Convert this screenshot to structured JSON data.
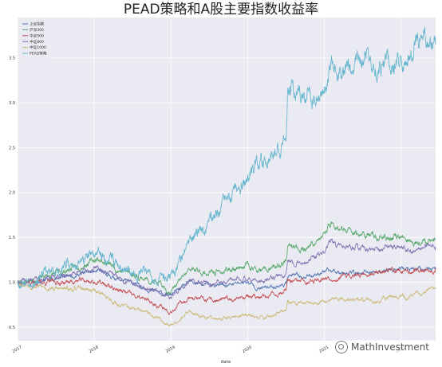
{
  "chart_data": {
    "type": "line",
    "title": "PEAD策略和A股主要指数收益率",
    "xlabel": "date",
    "ylabel": "",
    "xlim": [
      2017.0,
      2022.45
    ],
    "ylim": [
      0.35,
      3.95
    ],
    "xticks": [
      2017,
      2018,
      2019,
      2020,
      2021,
      2022
    ],
    "xtick_labels": [
      "2017",
      "2018",
      "2019",
      "2020",
      "2021",
      "2022"
    ],
    "yticks": [
      0.5,
      1.0,
      1.5,
      2.0,
      2.5,
      3.0,
      3.5
    ],
    "ytick_labels": [
      "0.5",
      "1.0",
      "1.5",
      "2.0",
      "2.5",
      "3.0",
      "3.5"
    ],
    "grid": true,
    "legend_position": "top-left",
    "series": [
      {
        "name": "上证指数",
        "color": "#4c72b0",
        "noise": 0.012,
        "seed": 11,
        "points": [
          [
            2017.0,
            1.0
          ],
          [
            2017.3,
            1.02
          ],
          [
            2017.6,
            1.06
          ],
          [
            2017.85,
            1.1
          ],
          [
            2018.05,
            1.12
          ],
          [
            2018.3,
            1.04
          ],
          [
            2018.6,
            0.96
          ],
          [
            2018.8,
            0.9
          ],
          [
            2018.98,
            0.85
          ],
          [
            2019.25,
            1.0
          ],
          [
            2019.45,
            0.97
          ],
          [
            2019.7,
            0.96
          ],
          [
            2019.98,
            1.01
          ],
          [
            2020.15,
            0.93
          ],
          [
            2020.3,
            0.95
          ],
          [
            2020.5,
            0.98
          ],
          [
            2020.52,
            1.08
          ],
          [
            2020.75,
            1.06
          ],
          [
            2020.98,
            1.12
          ],
          [
            2021.15,
            1.13
          ],
          [
            2021.45,
            1.1
          ],
          [
            2021.7,
            1.12
          ],
          [
            2021.98,
            1.16
          ],
          [
            2022.1,
            1.14
          ],
          [
            2022.3,
            1.15
          ],
          [
            2022.45,
            1.17
          ]
        ]
      },
      {
        "name": "沪深300",
        "color": "#55a868",
        "noise": 0.016,
        "seed": 23,
        "points": [
          [
            2017.0,
            1.0
          ],
          [
            2017.3,
            1.05
          ],
          [
            2017.6,
            1.12
          ],
          [
            2017.85,
            1.2
          ],
          [
            2018.05,
            1.26
          ],
          [
            2018.3,
            1.15
          ],
          [
            2018.6,
            1.06
          ],
          [
            2018.8,
            1.0
          ],
          [
            2018.98,
            0.9
          ],
          [
            2019.25,
            1.14
          ],
          [
            2019.45,
            1.1
          ],
          [
            2019.7,
            1.12
          ],
          [
            2019.98,
            1.2
          ],
          [
            2020.15,
            1.12
          ],
          [
            2020.3,
            1.14
          ],
          [
            2020.5,
            1.22
          ],
          [
            2020.52,
            1.38
          ],
          [
            2020.75,
            1.38
          ],
          [
            2020.98,
            1.5
          ],
          [
            2021.1,
            1.68
          ],
          [
            2021.2,
            1.58
          ],
          [
            2021.45,
            1.55
          ],
          [
            2021.7,
            1.5
          ],
          [
            2021.98,
            1.5
          ],
          [
            2022.1,
            1.45
          ],
          [
            2022.3,
            1.47
          ],
          [
            2022.45,
            1.48
          ]
        ]
      },
      {
        "name": "中证500",
        "color": "#c44e52",
        "noise": 0.015,
        "seed": 37,
        "points": [
          [
            2017.0,
            1.0
          ],
          [
            2017.3,
            1.0
          ],
          [
            2017.6,
            1.0
          ],
          [
            2017.85,
            1.02
          ],
          [
            2018.05,
            1.0
          ],
          [
            2018.3,
            0.92
          ],
          [
            2018.6,
            0.82
          ],
          [
            2018.8,
            0.76
          ],
          [
            2018.98,
            0.68
          ],
          [
            2019.25,
            0.84
          ],
          [
            2019.45,
            0.79
          ],
          [
            2019.7,
            0.8
          ],
          [
            2019.98,
            0.85
          ],
          [
            2020.15,
            0.82
          ],
          [
            2020.3,
            0.86
          ],
          [
            2020.5,
            0.9
          ],
          [
            2020.52,
            1.0
          ],
          [
            2020.75,
            1.0
          ],
          [
            2020.98,
            1.05
          ],
          [
            2021.15,
            1.05
          ],
          [
            2021.45,
            1.08
          ],
          [
            2021.7,
            1.12
          ],
          [
            2021.98,
            1.14
          ],
          [
            2022.1,
            1.12
          ],
          [
            2022.3,
            1.14
          ],
          [
            2022.45,
            1.16
          ]
        ]
      },
      {
        "name": "中证800",
        "color": "#8172b2",
        "noise": 0.014,
        "seed": 41,
        "points": [
          [
            2017.0,
            1.0
          ],
          [
            2017.3,
            1.04
          ],
          [
            2017.6,
            1.08
          ],
          [
            2017.85,
            1.13
          ],
          [
            2018.05,
            1.16
          ],
          [
            2018.3,
            1.06
          ],
          [
            2018.6,
            0.96
          ],
          [
            2018.8,
            0.9
          ],
          [
            2018.98,
            0.82
          ],
          [
            2019.25,
            1.02
          ],
          [
            2019.45,
            0.98
          ],
          [
            2019.7,
            0.99
          ],
          [
            2019.98,
            1.06
          ],
          [
            2020.15,
            1.0
          ],
          [
            2020.3,
            1.03
          ],
          [
            2020.5,
            1.1
          ],
          [
            2020.52,
            1.24
          ],
          [
            2020.75,
            1.23
          ],
          [
            2020.98,
            1.32
          ],
          [
            2021.1,
            1.46
          ],
          [
            2021.2,
            1.4
          ],
          [
            2021.45,
            1.38
          ],
          [
            2021.7,
            1.38
          ],
          [
            2021.98,
            1.4
          ],
          [
            2022.1,
            1.36
          ],
          [
            2022.3,
            1.38
          ],
          [
            2022.45,
            1.4
          ]
        ]
      },
      {
        "name": "中证1000",
        "color": "#ccb974",
        "noise": 0.014,
        "seed": 53,
        "points": [
          [
            2017.0,
            1.0
          ],
          [
            2017.3,
            0.95
          ],
          [
            2017.6,
            0.92
          ],
          [
            2017.85,
            0.93
          ],
          [
            2018.05,
            0.9
          ],
          [
            2018.3,
            0.76
          ],
          [
            2018.6,
            0.68
          ],
          [
            2018.8,
            0.62
          ],
          [
            2018.98,
            0.52
          ],
          [
            2019.25,
            0.68
          ],
          [
            2019.45,
            0.61
          ],
          [
            2019.7,
            0.6
          ],
          [
            2019.98,
            0.64
          ],
          [
            2020.15,
            0.6
          ],
          [
            2020.3,
            0.62
          ],
          [
            2020.5,
            0.68
          ],
          [
            2020.52,
            0.78
          ],
          [
            2020.75,
            0.77
          ],
          [
            2020.98,
            0.8
          ],
          [
            2021.15,
            0.82
          ],
          [
            2021.45,
            0.8
          ],
          [
            2021.7,
            0.8
          ],
          [
            2021.98,
            0.85
          ],
          [
            2022.1,
            0.82
          ],
          [
            2022.3,
            0.9
          ],
          [
            2022.45,
            0.94
          ]
        ]
      },
      {
        "name": "PEAD策略",
        "color": "#64b5cd",
        "noise": 0.03,
        "seed": 67,
        "points": [
          [
            2017.0,
            1.0
          ],
          [
            2017.3,
            1.06
          ],
          [
            2017.6,
            1.15
          ],
          [
            2017.85,
            1.25
          ],
          [
            2018.05,
            1.32
          ],
          [
            2018.3,
            1.22
          ],
          [
            2018.6,
            1.12
          ],
          [
            2018.8,
            1.08
          ],
          [
            2018.98,
            1.06
          ],
          [
            2019.1,
            1.2
          ],
          [
            2019.25,
            1.45
          ],
          [
            2019.45,
            1.65
          ],
          [
            2019.7,
            1.85
          ],
          [
            2019.98,
            2.1
          ],
          [
            2020.15,
            2.3
          ],
          [
            2020.3,
            2.45
          ],
          [
            2020.5,
            2.68
          ],
          [
            2020.52,
            3.2
          ],
          [
            2020.75,
            3.05
          ],
          [
            2020.98,
            3.1
          ],
          [
            2021.1,
            3.5
          ],
          [
            2021.2,
            3.35
          ],
          [
            2021.45,
            3.5
          ],
          [
            2021.7,
            3.45
          ],
          [
            2021.98,
            3.5
          ],
          [
            2022.1,
            3.55
          ],
          [
            2022.3,
            3.72
          ],
          [
            2022.45,
            3.65
          ]
        ]
      }
    ]
  },
  "watermark": {
    "text": "MathInvestment"
  }
}
